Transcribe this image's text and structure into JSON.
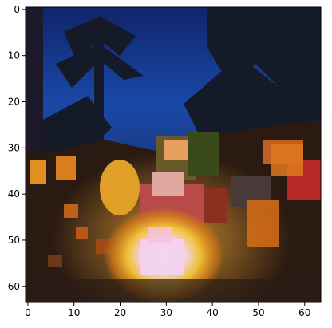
{
  "image": {
    "description_icon": "pixelated-campfire-image",
    "palette": {
      "sky": "#173a8f",
      "sky_dark": "#0f2466",
      "foliage": "#141a24",
      "ground": "#2a1a14",
      "fire_core": "#f3d2f0",
      "fire_glow": "#f0c23a",
      "fire_orange": "#e08a20",
      "figure_red": "#b83030",
      "figure_green": "#3a4a1a"
    }
  },
  "axes": {
    "x_ticks": [
      "0",
      "10",
      "20",
      "30",
      "40",
      "50",
      "60"
    ],
    "y_ticks": [
      "0",
      "10",
      "20",
      "30",
      "40",
      "50",
      "60"
    ],
    "x_range": [
      -0.5,
      63.5
    ],
    "y_range": [
      -0.5,
      63.5
    ]
  }
}
